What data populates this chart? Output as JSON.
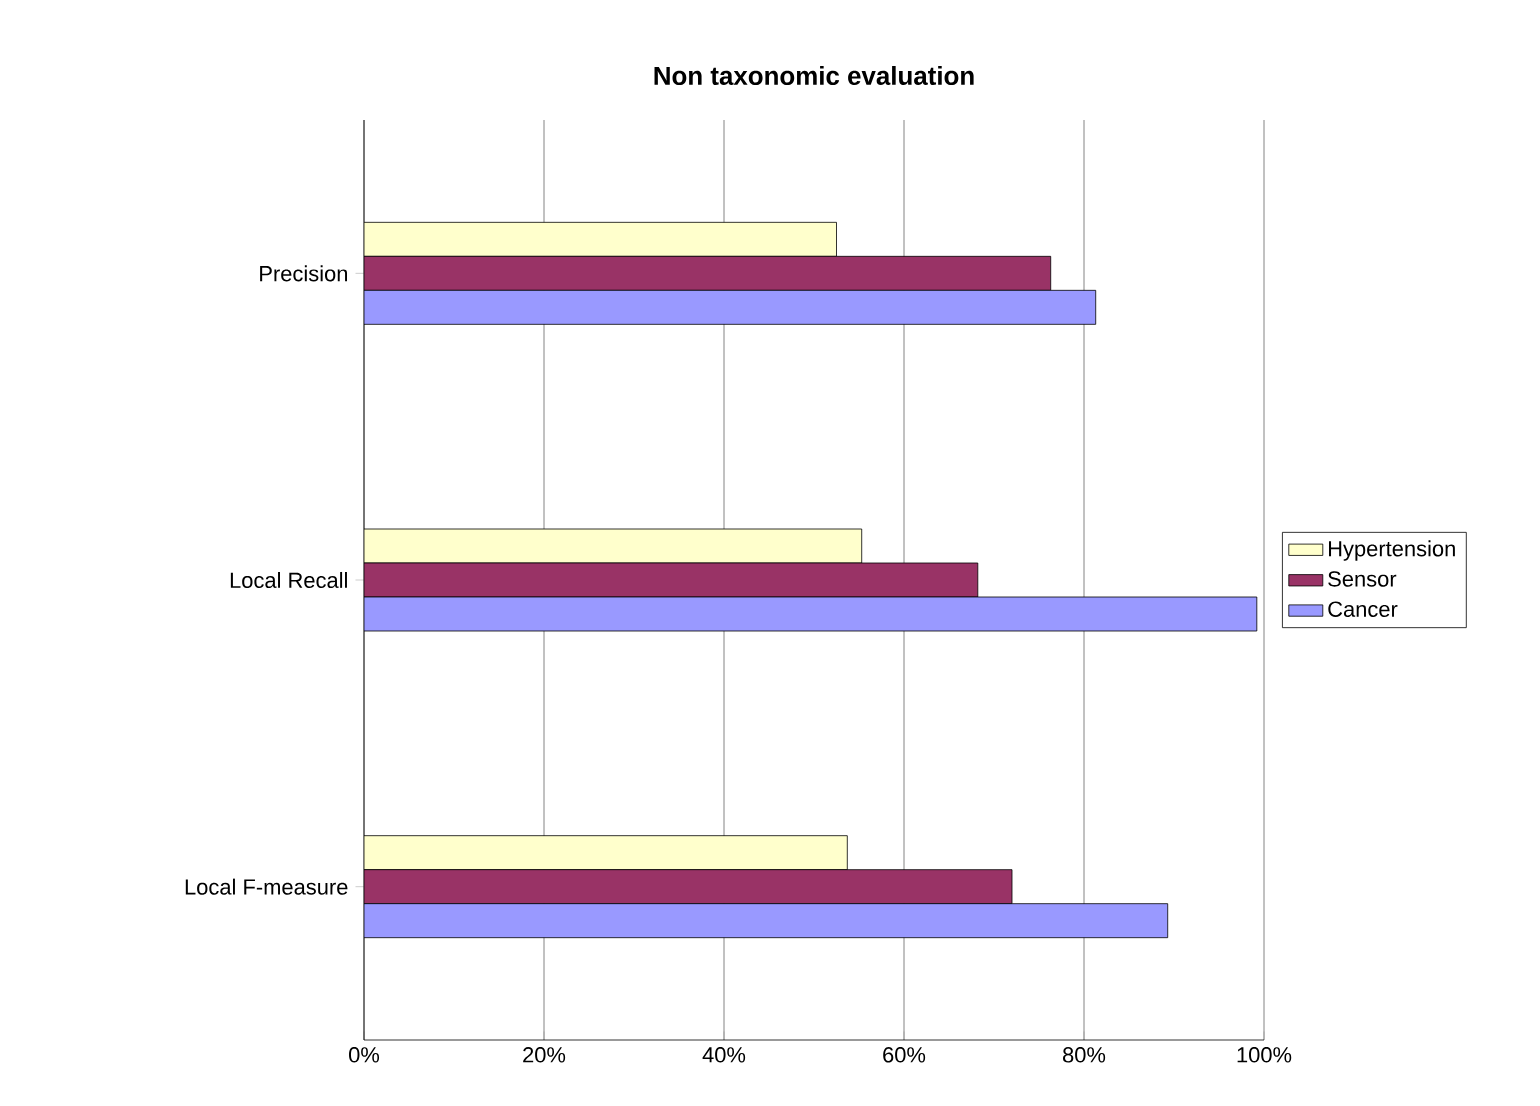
{
  "chart_data": {
    "type": "bar",
    "orientation": "horizontal",
    "title": "Non taxonomic evaluation",
    "categories": [
      "Precision",
      "Local Recall",
      "Local F-measure"
    ],
    "series": [
      {
        "name": "Hypertension",
        "color": "#ffffcc",
        "values": [
          52.5,
          55.3,
          53.7
        ]
      },
      {
        "name": "Sensor",
        "color": "#993366",
        "values": [
          76.3,
          68.2,
          72
        ]
      },
      {
        "name": "Cancer",
        "color": "#9999ff",
        "values": [
          81.3,
          99.2,
          89.3
        ]
      }
    ],
    "xlim": [
      0,
      100
    ],
    "xticks": [
      {
        "value": 0,
        "label": "0%"
      },
      {
        "value": 20,
        "label": "20%"
      },
      {
        "value": 40,
        "label": "40%"
      },
      {
        "value": 60,
        "label": "60%"
      },
      {
        "value": 80,
        "label": "80%"
      },
      {
        "value": 100,
        "label": "100%"
      }
    ],
    "grid": "x",
    "legend": "right"
  }
}
